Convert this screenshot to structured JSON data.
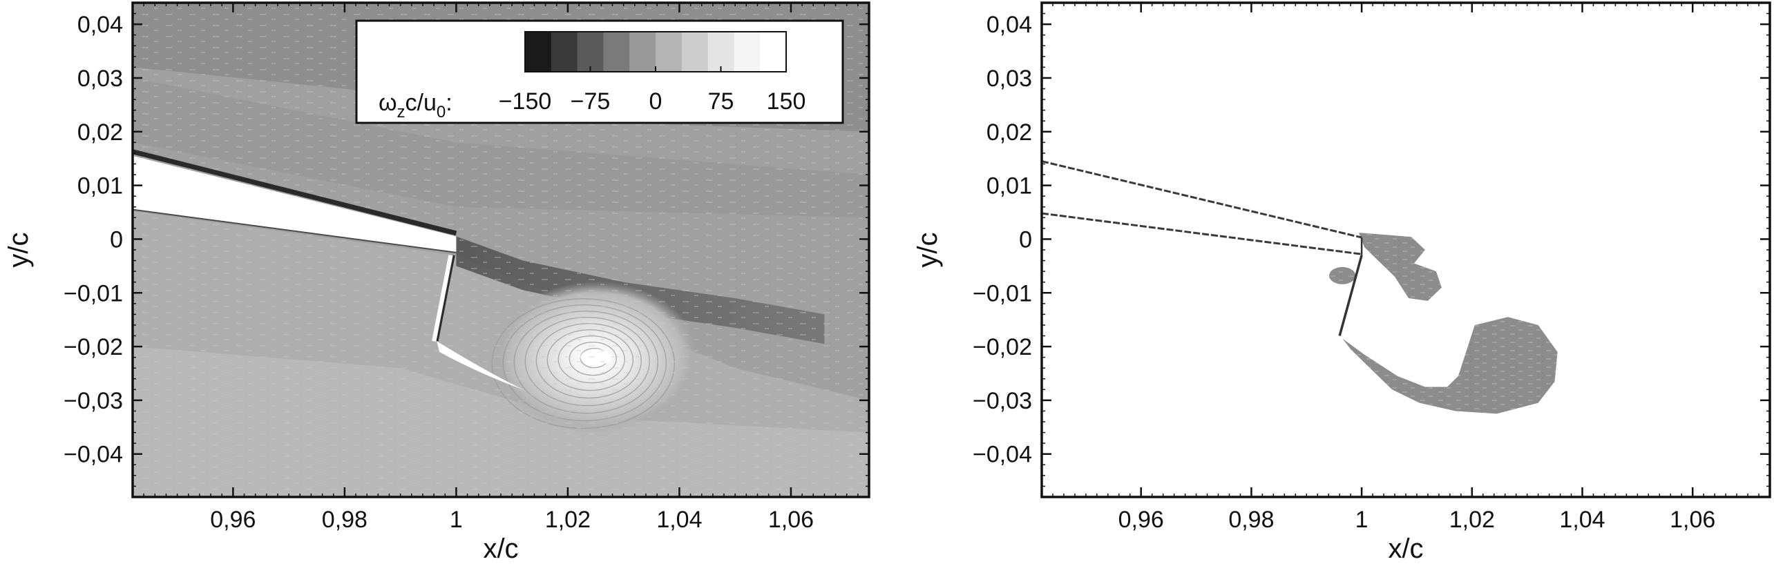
{
  "chart_data": [
    {
      "type": "heatmap",
      "panel": "left",
      "xlabel": "x/c",
      "ylabel": "y/c",
      "xlim": [
        0.942,
        1.074
      ],
      "ylim": [
        -0.048,
        0.044
      ],
      "xticks": [
        0.96,
        0.98,
        1.0,
        1.02,
        1.04,
        1.06
      ],
      "xtick_labels": [
        "0,96",
        "0,98",
        "1",
        "1,02",
        "1,04",
        "1,06"
      ],
      "yticks": [
        0.04,
        0.03,
        0.02,
        0.01,
        0.0,
        -0.01,
        -0.02,
        -0.03,
        -0.04
      ],
      "ytick_labels": [
        "0,04",
        "0,03",
        "0,02",
        "0,01",
        "0",
        "−0,01",
        "−0,02",
        "−0,03",
        "−0,04"
      ],
      "colorbar": {
        "label_main": "ω",
        "label_sub1": "z",
        "label_mid": "c/u",
        "label_sub2": "0",
        "label_end": ":",
        "ticks": [
          -150,
          -75,
          0,
          75,
          150
        ],
        "tick_labels": [
          "−150",
          "−75",
          "0",
          "75",
          "150"
        ],
        "range": [
          -150,
          150
        ],
        "colors": [
          "#1a1a1a",
          "#3a3a3a",
          "#5a5a5a",
          "#7a7a7a",
          "#999999",
          "#b4b4b4",
          "#cdcdcd",
          "#e4e4e4",
          "#f5f5f5",
          "#ffffff"
        ]
      },
      "geometry": {
        "airfoil_upper": [
          [
            0.942,
            0.0155
          ],
          [
            1.0,
            0.0005
          ]
        ],
        "airfoil_lower": [
          [
            0.942,
            0.0055
          ],
          [
            1.0,
            -0.0025
          ]
        ],
        "flap_hinge_line": [
          [
            0.999,
            -0.003
          ],
          [
            0.996,
            -0.019
          ]
        ],
        "vortex_core": [
          1.025,
          -0.022
        ],
        "shear_layer": [
          [
            1.0,
            0.0005
          ],
          [
            1.012,
            -0.004
          ],
          [
            1.03,
            -0.008
          ],
          [
            1.05,
            -0.011
          ],
          [
            1.066,
            -0.014
          ]
        ]
      },
      "background_color": "#a0a0a0"
    },
    {
      "type": "heatmap",
      "panel": "right",
      "xlabel": "x/c",
      "ylabel": "y/c",
      "xlim": [
        0.942,
        1.074
      ],
      "ylim": [
        -0.048,
        0.044
      ],
      "xticks": [
        0.96,
        0.98,
        1.0,
        1.02,
        1.04,
        1.06
      ],
      "xtick_labels": [
        "0,96",
        "0,98",
        "1",
        "1,02",
        "1,04",
        "1,06"
      ],
      "yticks": [
        0.04,
        0.03,
        0.02,
        0.01,
        0.0,
        -0.01,
        -0.02,
        -0.03,
        -0.04
      ],
      "ytick_labels": [
        "0,04",
        "0,03",
        "0,02",
        "0,01",
        "0",
        "−0,01",
        "−0,02",
        "−0,03",
        "−0,04"
      ],
      "geometry": {
        "airfoil_upper": [
          [
            0.942,
            0.0145
          ],
          [
            1.0,
            0.0003
          ]
        ],
        "airfoil_lower": [
          [
            0.942,
            0.0048
          ],
          [
            1.0,
            -0.0028
          ]
        ],
        "flap": [
          [
            1.0,
            -0.003
          ],
          [
            0.996,
            -0.018
          ]
        ]
      },
      "regions": [
        {
          "kind": "small-blob",
          "center": [
            0.9965,
            -0.0068
          ],
          "rx": 0.0024,
          "ry": 0.0016
        },
        {
          "kind": "upper-lobe",
          "outline": [
            [
              0.9995,
              0.0012
            ],
            [
              1.0045,
              0.0008
            ],
            [
              1.009,
              0.0004
            ],
            [
              1.0115,
              -0.002
            ],
            [
              1.0095,
              -0.0045
            ],
            [
              1.0135,
              -0.006
            ],
            [
              1.0145,
              -0.009
            ],
            [
              1.012,
              -0.0115
            ],
            [
              1.0085,
              -0.011
            ],
            [
              1.006,
              -0.007
            ],
            [
              1.0025,
              -0.0035
            ],
            [
              1.0005,
              -0.0015
            ]
          ]
        },
        {
          "kind": "lower-vortex",
          "outline": [
            [
              0.9965,
              -0.0185
            ],
            [
              1.0005,
              -0.0215
            ],
            [
              1.0065,
              -0.0255
            ],
            [
              1.0115,
              -0.0275
            ],
            [
              1.0155,
              -0.0275
            ],
            [
              1.0175,
              -0.0255
            ],
            [
              1.0205,
              -0.016
            ],
            [
              1.0265,
              -0.0145
            ],
            [
              1.032,
              -0.016
            ],
            [
              1.0355,
              -0.021
            ],
            [
              1.035,
              -0.0265
            ],
            [
              1.032,
              -0.0305
            ],
            [
              1.0245,
              -0.0325
            ],
            [
              1.017,
              -0.032
            ],
            [
              1.0105,
              -0.0305
            ],
            [
              1.0055,
              -0.028
            ],
            [
              1.0015,
              -0.024
            ],
            [
              0.998,
              -0.0205
            ]
          ]
        }
      ],
      "fill_color": "#8c8c8c"
    }
  ]
}
